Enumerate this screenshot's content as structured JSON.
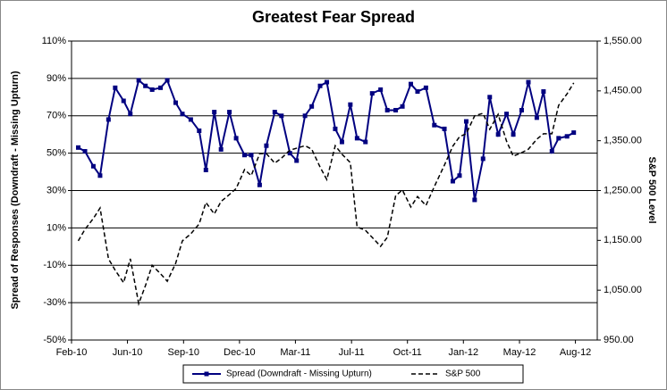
{
  "chart_data": {
    "type": "line",
    "title": "Greatest Fear Spread",
    "y_label": "Spread of Responses (Downdraft - Missing Upturn)",
    "y2_label": "S&P 500 Level",
    "x": [
      0.4,
      0.8,
      1.3,
      1.7,
      2.2,
      2.6,
      3.1,
      3.5,
      4.0,
      4.4,
      4.8,
      5.3,
      5.7,
      6.2,
      6.6,
      7.1,
      7.6,
      8.0,
      8.5,
      8.9,
      9.4,
      9.8,
      10.3,
      10.7,
      11.2,
      11.6,
      12.1,
      12.5,
      13.0,
      13.4,
      13.9,
      14.3,
      14.8,
      15.2,
      15.7,
      16.1,
      16.6,
      17.0,
      17.5,
      17.9,
      18.4,
      18.8,
      19.3,
      19.7,
      20.2,
      20.6,
      21.1,
      21.6,
      22.2,
      22.7,
      23.1,
      23.5,
      24.0,
      24.5,
      24.9,
      25.4,
      25.9,
      26.3,
      26.8,
      27.2,
      27.7,
      28.1,
      28.6,
      29.0,
      29.5,
      29.9
    ],
    "xlim": [
      0,
      31.3
    ],
    "xticks": [
      {
        "value": 0,
        "label": "Feb-10"
      },
      {
        "value": 3.33,
        "label": "Jun-10"
      },
      {
        "value": 6.67,
        "label": "Sep-10"
      },
      {
        "value": 10,
        "label": "Dec-10"
      },
      {
        "value": 13.33,
        "label": "Mar-11"
      },
      {
        "value": 16.67,
        "label": "Jul-11"
      },
      {
        "value": 20,
        "label": "Oct-11"
      },
      {
        "value": 23.33,
        "label": "Jan-12"
      },
      {
        "value": 26.67,
        "label": "May-12"
      },
      {
        "value": 30,
        "label": "Aug-12"
      }
    ],
    "ylim": [
      -50,
      110
    ],
    "yticks": [
      {
        "value": -50,
        "label": "-50%"
      },
      {
        "value": -30,
        "label": "-30%"
      },
      {
        "value": -10,
        "label": "-10%"
      },
      {
        "value": 10,
        "label": "10%"
      },
      {
        "value": 30,
        "label": "30%"
      },
      {
        "value": 50,
        "label": "50%"
      },
      {
        "value": 70,
        "label": "70%"
      },
      {
        "value": 90,
        "label": "90%"
      },
      {
        "value": 110,
        "label": "110%"
      }
    ],
    "y2lim": [
      950,
      1550
    ],
    "y2ticks": [
      {
        "value": 950,
        "label": "950.00"
      },
      {
        "value": 1050,
        "label": "1,050.00"
      },
      {
        "value": 1150,
        "label": "1,150.00"
      },
      {
        "value": 1250,
        "label": "1,250.00"
      },
      {
        "value": 1350,
        "label": "1,350.00"
      },
      {
        "value": 1450,
        "label": "1,450.00"
      },
      {
        "value": 1550,
        "label": "1,550.00"
      }
    ],
    "grid": true,
    "legend": "bottom",
    "series": [
      {
        "name": "Spread (Downdraft - Missing Upturn)",
        "color": "#000080",
        "line_style": "solid",
        "marker": "square",
        "values": [
          53,
          51,
          43,
          38,
          68,
          85,
          78,
          71,
          89,
          86,
          84,
          85,
          89,
          77,
          71,
          68,
          62,
          41,
          72,
          52,
          72,
          58,
          49,
          49,
          33,
          54,
          72,
          70,
          50,
          46,
          70,
          75,
          86,
          88,
          63,
          56,
          76,
          58,
          56,
          82,
          84,
          73,
          73,
          75,
          87,
          83,
          85,
          65,
          63,
          35,
          38,
          67,
          25,
          47,
          80,
          60,
          71,
          60,
          73,
          88,
          69,
          83,
          51,
          58,
          59,
          61
        ]
      },
      {
        "name": "S&P 500",
        "color": "#000000",
        "line_style": "dashed",
        "axis": "y2",
        "values": [
          1149,
          1172,
          1194,
          1215,
          1113,
          1090,
          1065,
          1113,
          1023,
          1059,
          1100,
          1083,
          1068,
          1104,
          1149,
          1163,
          1183,
          1226,
          1203,
          1228,
          1242,
          1254,
          1292,
          1280,
          1324,
          1324,
          1305,
          1315,
          1331,
          1335,
          1340,
          1333,
          1297,
          1272,
          1340,
          1323,
          1306,
          1177,
          1170,
          1156,
          1138,
          1156,
          1240,
          1251,
          1217,
          1238,
          1220,
          1258,
          1301,
          1339,
          1358,
          1364,
          1400,
          1405,
          1373,
          1403,
          1349,
          1319,
          1326,
          1333,
          1353,
          1364,
          1364,
          1421,
          1444,
          1466
        ]
      }
    ]
  }
}
